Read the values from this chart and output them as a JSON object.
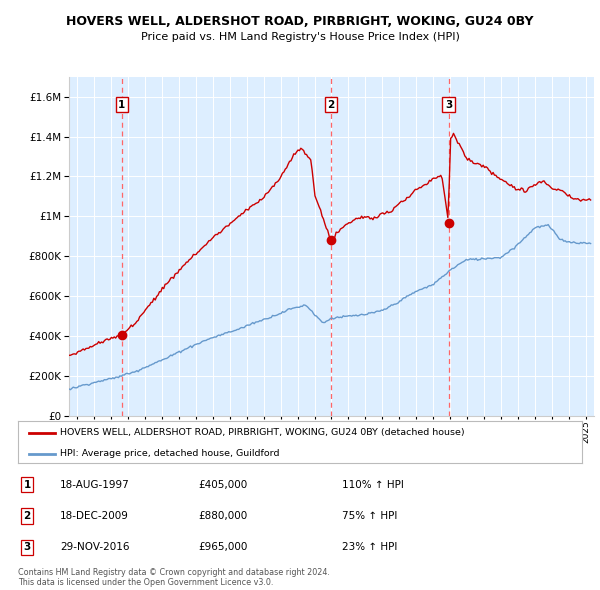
{
  "title": "HOVERS WELL, ALDERSHOT ROAD, PIRBRIGHT, WOKING, GU24 0BY",
  "subtitle": "Price paid vs. HM Land Registry's House Price Index (HPI)",
  "legend_line1": "HOVERS WELL, ALDERSHOT ROAD, PIRBRIGHT, WOKING, GU24 0BY (detached house)",
  "legend_line2": "HPI: Average price, detached house, Guildford",
  "sales": [
    {
      "label": "1",
      "date_str": "18-AUG-1997",
      "date_num": 1997.625,
      "price": 405000,
      "pct": "110%",
      "dir": "↑"
    },
    {
      "label": "2",
      "date_str": "18-DEC-2009",
      "date_num": 2009.958,
      "price": 880000,
      "pct": "75%",
      "dir": "↑"
    },
    {
      "label": "3",
      "date_str": "29-NOV-2016",
      "date_num": 2016.913,
      "price": 965000,
      "pct": "23%",
      "dir": "↑"
    }
  ],
  "copyright_text": "Contains HM Land Registry data © Crown copyright and database right 2024.\nThis data is licensed under the Open Government Licence v3.0.",
  "xlim": [
    1994.5,
    2025.5
  ],
  "ylim": [
    0,
    1700000
  ],
  "yticks": [
    0,
    200000,
    400000,
    600000,
    800000,
    1000000,
    1200000,
    1400000,
    1600000
  ],
  "xticks": [
    1995,
    1996,
    1997,
    1998,
    1999,
    2000,
    2001,
    2002,
    2003,
    2004,
    2005,
    2006,
    2007,
    2008,
    2009,
    2010,
    2011,
    2012,
    2013,
    2014,
    2015,
    2016,
    2017,
    2018,
    2019,
    2020,
    2021,
    2022,
    2023,
    2024,
    2025
  ],
  "red_color": "#cc0000",
  "blue_color": "#6699cc",
  "fig_bg": "#ffffff",
  "plot_bg": "#ddeeff",
  "grid_color": "#ffffff",
  "dashed_color": "#ff6666",
  "sale_dates": [
    1997.625,
    2009.958,
    2016.913
  ],
  "sale_prices": [
    405000,
    880000,
    965000
  ]
}
